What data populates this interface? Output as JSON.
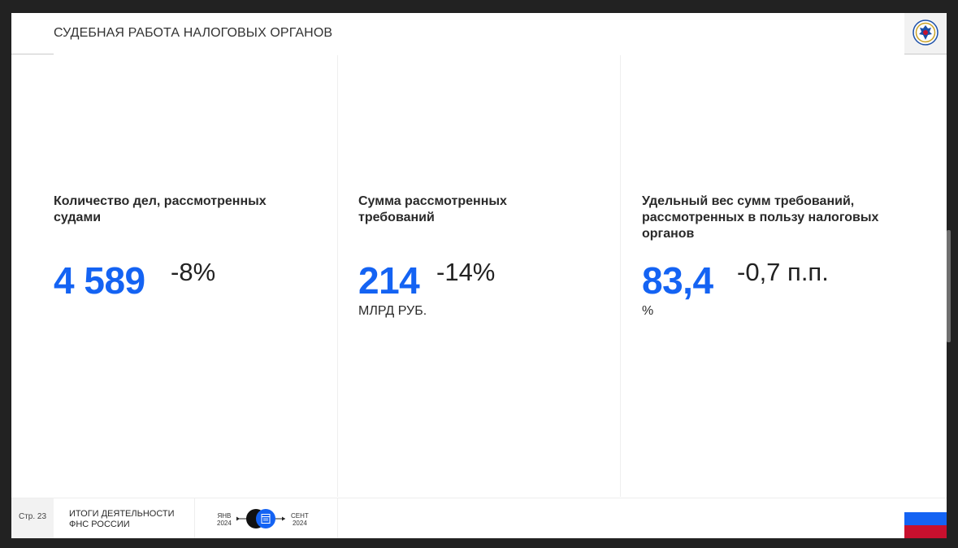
{
  "header": {
    "title": "СУДЕБНАЯ РАБОТА НАЛОГОВЫХ ОРГАНОВ",
    "emblem_icon": "fns-emblem-icon"
  },
  "metrics": [
    {
      "label": "Количество дел, рассмотренных судами",
      "value": "4 589",
      "change": "-8%",
      "unit": ""
    },
    {
      "label": "Сумма рассмотренных требований",
      "value": "214",
      "change": "-14%",
      "unit": "МЛРД РУБ."
    },
    {
      "label": "Удельный вес сумм требований, рассмотренных в пользу налоговых органов",
      "value": "83,4",
      "change": "-0,7 п.п.",
      "unit": "%"
    }
  ],
  "footer": {
    "page": "Стр. 23",
    "line1": "ИТОГИ ДЕЯТЕЛЬНОСТИ",
    "line2": "ФНС РОССИИ",
    "timeline_start_month": "ЯНВ",
    "timeline_start_year": "2024",
    "timeline_end_month": "СЕНТ",
    "timeline_end_year": "2024",
    "timeline_icon": "calendar-icon"
  },
  "colors": {
    "accent": "#1463f3",
    "flag_white": "#ffffff",
    "flag_blue": "#1463f3",
    "flag_red": "#c8102e"
  }
}
